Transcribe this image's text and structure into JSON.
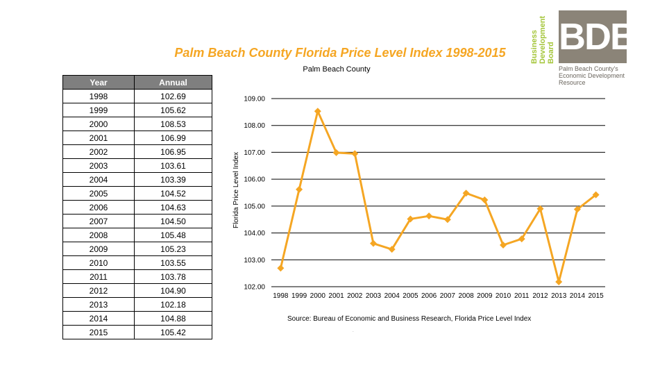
{
  "title": "Palm Beach County Florida Price Level Index 1998-2015",
  "logo": {
    "mark": "BDB",
    "words": "Business Development Board",
    "tagline_1": "Palm Beach County's",
    "tagline_2": "Economic Development Resource"
  },
  "table": {
    "headers": [
      "Year",
      "Annual"
    ],
    "rows": [
      [
        "1998",
        "102.69"
      ],
      [
        "1999",
        "105.62"
      ],
      [
        "2000",
        "108.53"
      ],
      [
        "2001",
        "106.99"
      ],
      [
        "2002",
        "106.95"
      ],
      [
        "2003",
        "103.61"
      ],
      [
        "2004",
        "103.39"
      ],
      [
        "2005",
        "104.52"
      ],
      [
        "2006",
        "104.63"
      ],
      [
        "2007",
        "104.50"
      ],
      [
        "2008",
        "105.48"
      ],
      [
        "2009",
        "105.23"
      ],
      [
        "2010",
        "103.55"
      ],
      [
        "2011",
        "103.78"
      ],
      [
        "2012",
        "104.90"
      ],
      [
        "2013",
        "102.18"
      ],
      [
        "2014",
        "104.88"
      ],
      [
        "2015",
        "105.42"
      ]
    ]
  },
  "chart_data": {
    "type": "line",
    "title": "Palm Beach County",
    "xlabel": "",
    "ylabel": "Florida Price Level Index",
    "categories": [
      "1998",
      "1999",
      "2000",
      "2001",
      "2002",
      "2003",
      "2004",
      "2005",
      "2006",
      "2007",
      "2008",
      "2009",
      "2010",
      "2011",
      "2012",
      "2013",
      "2014",
      "2015"
    ],
    "series": [
      {
        "values": [
          102.69,
          105.62,
          108.53,
          106.99,
          106.95,
          103.61,
          103.39,
          104.52,
          104.63,
          104.5,
          105.48,
          105.23,
          103.55,
          103.78,
          104.9,
          102.18,
          104.88,
          105.42
        ],
        "color": "#f5a623",
        "marker": "diamond"
      }
    ],
    "ylim": [
      102,
      109
    ],
    "yticks": [
      "102.00",
      "103.00",
      "104.00",
      "105.00",
      "106.00",
      "107.00",
      "108.00",
      "109.00"
    ],
    "grid": true,
    "legend": "none"
  },
  "source": "Source: Bureau of Economic and Business Research, Florida Price Level Index",
  "stray_mark": "."
}
